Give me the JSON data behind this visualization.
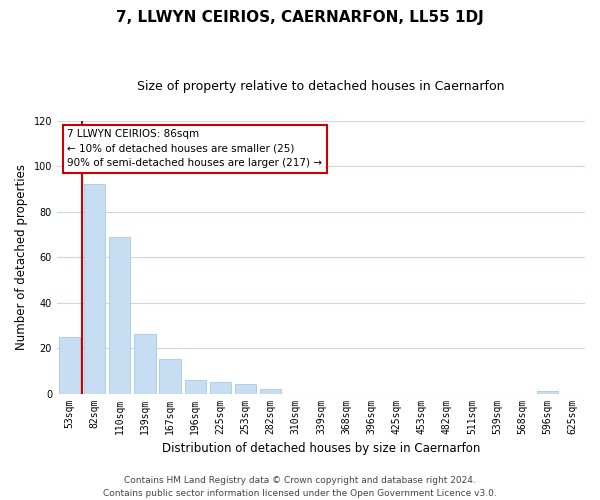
{
  "title": "7, LLWYN CEIRIOS, CAERNARFON, LL55 1DJ",
  "subtitle": "Size of property relative to detached houses in Caernarfon",
  "xlabel": "Distribution of detached houses by size in Caernarfon",
  "ylabel": "Number of detached properties",
  "bar_labels": [
    "53sqm",
    "82sqm",
    "110sqm",
    "139sqm",
    "167sqm",
    "196sqm",
    "225sqm",
    "253sqm",
    "282sqm",
    "310sqm",
    "339sqm",
    "368sqm",
    "396sqm",
    "425sqm",
    "453sqm",
    "482sqm",
    "511sqm",
    "539sqm",
    "568sqm",
    "596sqm",
    "625sqm"
  ],
  "bar_values": [
    25,
    92,
    69,
    26,
    15,
    6,
    5,
    4,
    2,
    0,
    0,
    0,
    0,
    0,
    0,
    0,
    0,
    0,
    0,
    1,
    0
  ],
  "bar_color": "#c7ddf2",
  "bar_edge_color": "#a8c8e8",
  "vline_x": 0.5,
  "vline_color": "#cc0000",
  "annotation_title": "7 LLWYN CEIRIOS: 86sqm",
  "annotation_line1": "← 10% of detached houses are smaller (25)",
  "annotation_line2": "90% of semi-detached houses are larger (217) →",
  "annotation_box_color": "#ffffff",
  "annotation_box_edge": "#cc0000",
  "ylim": [
    0,
    120
  ],
  "yticks": [
    0,
    20,
    40,
    60,
    80,
    100,
    120
  ],
  "footer_line1": "Contains HM Land Registry data © Crown copyright and database right 2024.",
  "footer_line2": "Contains public sector information licensed under the Open Government Licence v3.0.",
  "bg_color": "#ffffff",
  "grid_color": "#c8d8ec",
  "title_fontsize": 11,
  "subtitle_fontsize": 9,
  "axis_label_fontsize": 8.5,
  "tick_fontsize": 7,
  "footer_fontsize": 6.5
}
